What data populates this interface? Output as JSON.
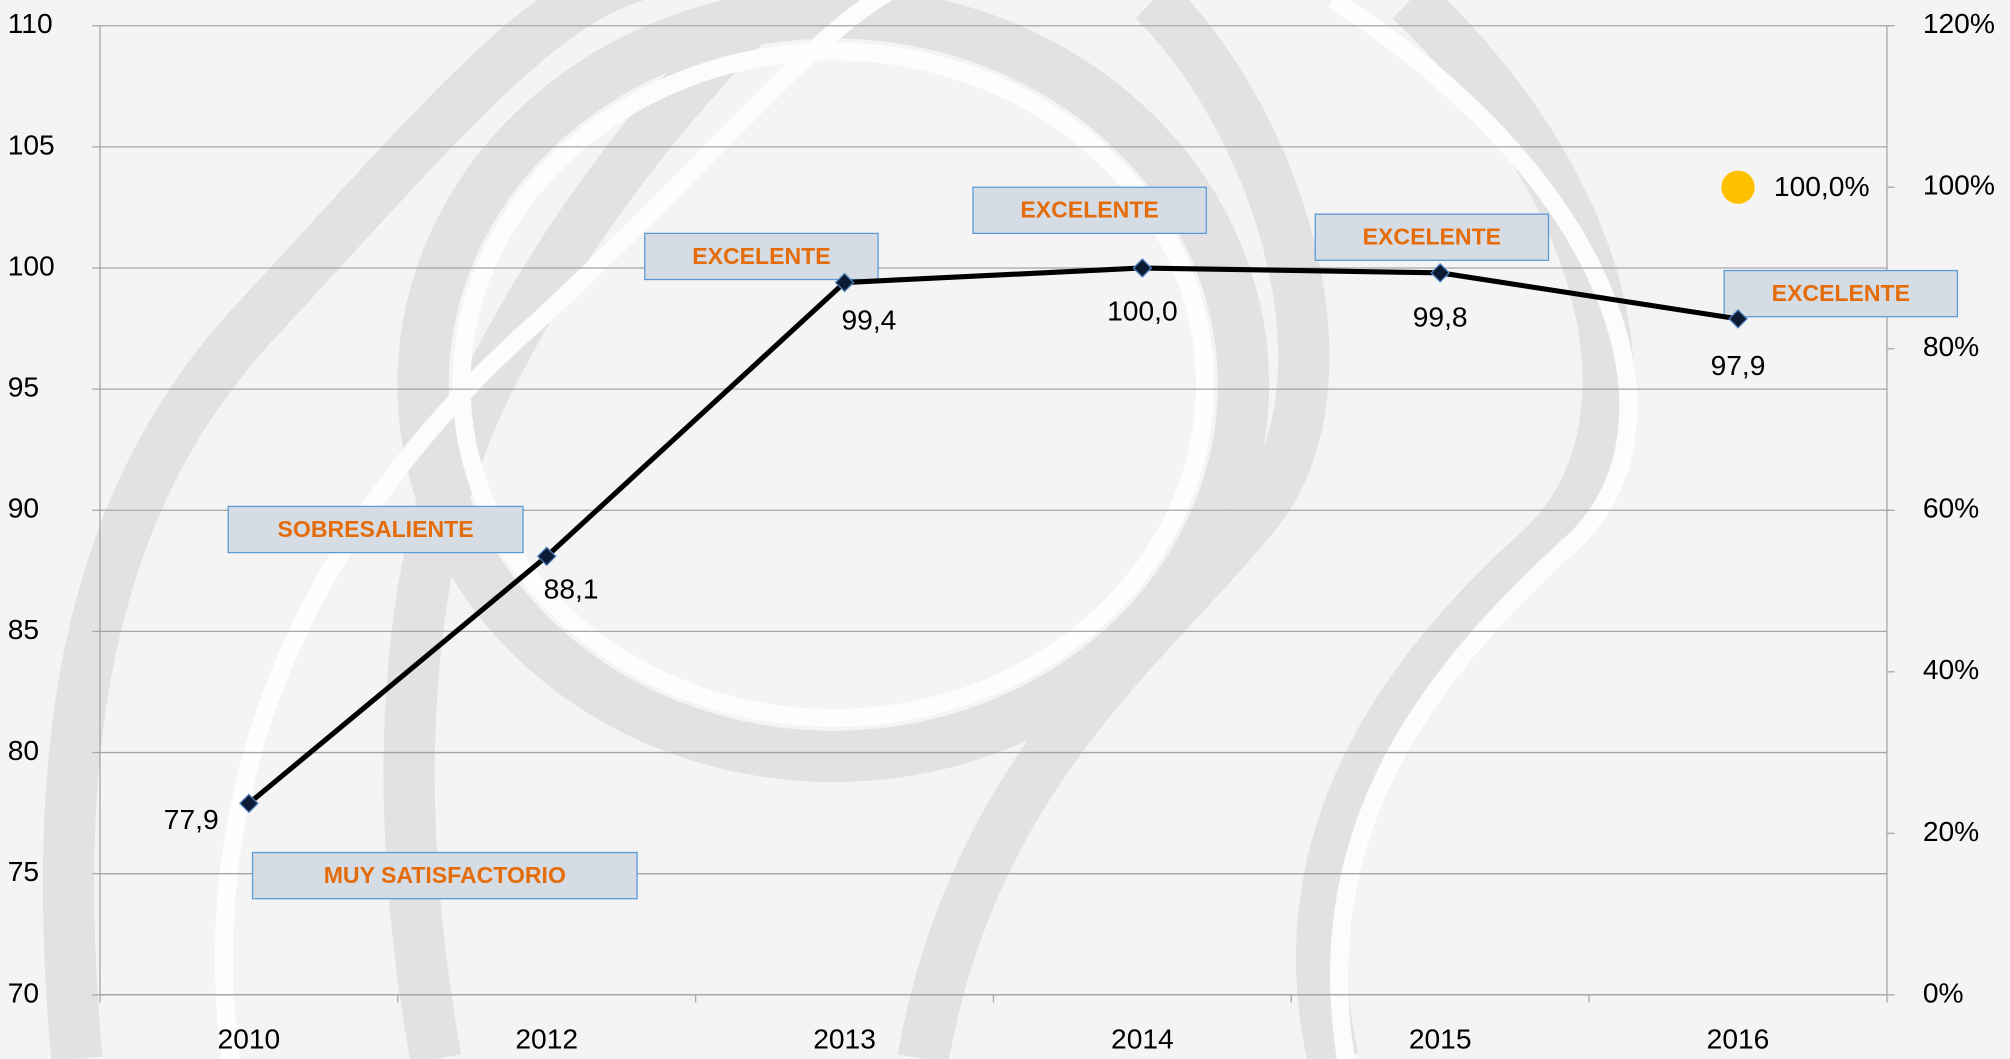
{
  "chart_data": {
    "type": "line",
    "categories": [
      "2010",
      "2012",
      "2013",
      "2014",
      "2015",
      "2016"
    ],
    "series": [
      {
        "color": "#000000",
        "values": [
          77.9,
          88.1,
          99.4,
          100.0,
          99.8,
          97.9
        ],
        "value_labels": [
          "77,9",
          "88,1",
          "99,4",
          "100,0",
          "99,8",
          "97,9"
        ]
      },
      {
        "color": "#ffc000",
        "axis": "y2",
        "values": [
          null,
          null,
          null,
          null,
          null,
          100
        ],
        "value_labels": [
          null,
          null,
          null,
          null,
          null,
          "100,0%"
        ]
      }
    ],
    "annotations": [
      "MUY SATISFACTORIO",
      "SOBRESALIENTE",
      "EXCELENTE",
      "EXCELENTE",
      "EXCELENTE",
      "EXCELENTE"
    ],
    "ylim": [
      70,
      110
    ],
    "yticks": [
      70,
      75,
      80,
      85,
      90,
      95,
      100,
      105,
      110
    ],
    "y2lim": [
      0,
      120
    ],
    "y2ticks": [
      {
        "value": 0,
        "label": "0%"
      },
      {
        "value": 20,
        "label": "20%"
      },
      {
        "value": 40,
        "label": "40%"
      },
      {
        "value": 60,
        "label": "60%"
      },
      {
        "value": 80,
        "label": "80%"
      },
      {
        "value": 100,
        "label": "100%"
      },
      {
        "value": 120,
        "label": "120%"
      }
    ],
    "grid": true
  }
}
